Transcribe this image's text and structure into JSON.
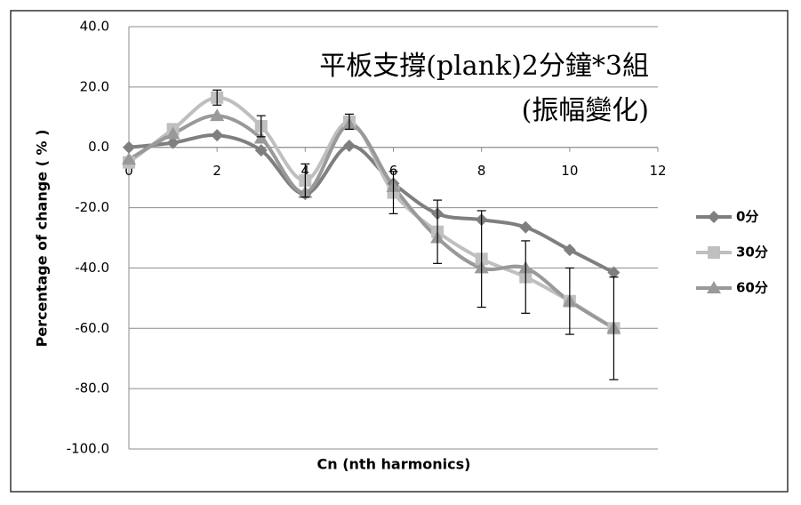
{
  "chart_data": {
    "type": "line",
    "title": [
      "平板支撐(plank)2分鐘*3組",
      "(振幅變化)"
    ],
    "xlabel": "Cn (nth harmonics)",
    "ylabel": "Percentage of change ( % )",
    "x": [
      0,
      1,
      2,
      3,
      4,
      5,
      6,
      7,
      8,
      9,
      10,
      11
    ],
    "series": [
      {
        "name": "0分",
        "color": "#7f7f7f",
        "marker": "diamond",
        "values": [
          0,
          1.5,
          4,
          -1,
          -15.5,
          0.5,
          -12,
          -22,
          -24,
          -26.5,
          -34,
          -41.5
        ]
      },
      {
        "name": "30分",
        "color": "#bfbfbf",
        "marker": "square",
        "values": [
          -5,
          6,
          16.5,
          7,
          -11,
          8.5,
          -15,
          -28,
          -37,
          -43,
          -51,
          -60
        ],
        "errors": [
          null,
          null,
          2.5,
          3.5,
          5.5,
          2.5,
          7,
          10.5,
          16,
          12,
          11,
          17
        ]
      },
      {
        "name": "60分",
        "color": "#999999",
        "marker": "triangle",
        "values": [
          -4,
          4.5,
          10.5,
          3,
          -15,
          7.5,
          -13,
          -30,
          -40,
          -40,
          -51,
          -60
        ]
      }
    ],
    "xlim": [
      0,
      12
    ],
    "xticks": [
      0,
      2,
      4,
      6,
      8,
      10,
      12
    ],
    "ylim": [
      -100,
      40
    ],
    "yticks": [
      {
        "value": -100,
        "label": "-100.0"
      },
      {
        "value": -80,
        "label": "-80.0"
      },
      {
        "value": -60,
        "label": "-60.0"
      },
      {
        "value": -40,
        "label": "-40.0"
      },
      {
        "value": -20,
        "label": "-20.0"
      },
      {
        "value": 0,
        "label": "0.0"
      },
      {
        "value": 20,
        "label": "20.0"
      },
      {
        "value": 40,
        "label": "40.0"
      }
    ],
    "grid": true,
    "legend": "right"
  }
}
